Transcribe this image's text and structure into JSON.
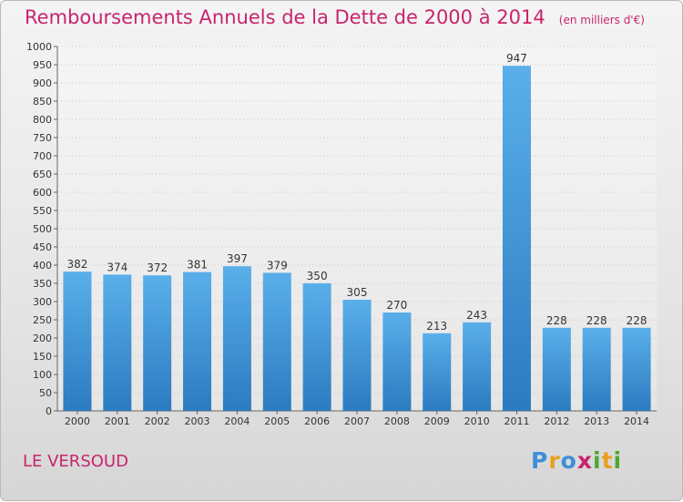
{
  "title": "Remboursements Annuels de la Dette de 2000 à 2014",
  "unit_note": "(en milliers d'€)",
  "place": "LE VERSOUD",
  "logo": {
    "p": "P",
    "r": "r",
    "o": "o",
    "x": "x",
    "i": "i",
    "t": "t",
    "i2": "i"
  },
  "colors": {
    "bar_top": "#5aafea",
    "bar_bottom": "#2b7bc0",
    "accent": "#c8246c"
  },
  "chart_data": {
    "type": "bar",
    "categories": [
      "2000",
      "2001",
      "2002",
      "2003",
      "2004",
      "2005",
      "2006",
      "2007",
      "2008",
      "2009",
      "2010",
      "2011",
      "2012",
      "2013",
      "2014"
    ],
    "values": [
      382,
      374,
      372,
      381,
      397,
      379,
      350,
      305,
      270,
      213,
      243,
      947,
      228,
      228,
      228
    ],
    "ylim": [
      0,
      1000
    ],
    "yticks": [
      0,
      50,
      100,
      150,
      200,
      250,
      300,
      350,
      400,
      450,
      500,
      550,
      600,
      650,
      700,
      750,
      800,
      850,
      900,
      950,
      1000
    ],
    "grid": true,
    "legend": "none"
  }
}
